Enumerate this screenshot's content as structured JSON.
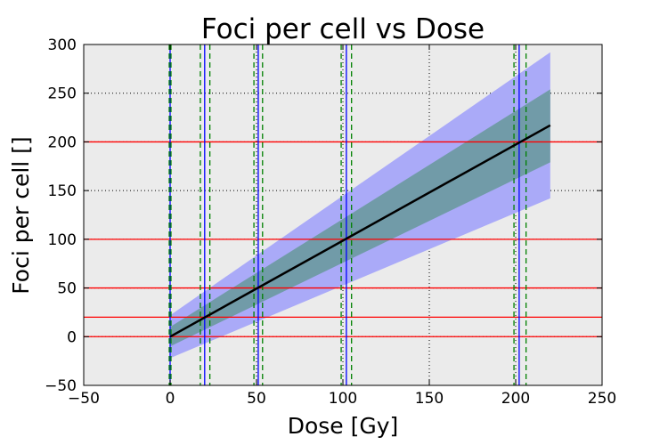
{
  "chart_data": {
    "type": "line",
    "title": "Foci per cell vs Dose",
    "xlabel": "Dose [Gy]",
    "ylabel": "Foci per cell []",
    "xlim": [
      -50,
      250
    ],
    "ylim": [
      -50,
      300
    ],
    "xticks": [
      "−50",
      "0",
      "50",
      "100",
      "150",
      "200",
      "250"
    ],
    "yticks": [
      "−50",
      "0",
      "50",
      "100",
      "150",
      "200",
      "250",
      "300"
    ],
    "grid": true,
    "background_color": "#ebebeb",
    "series": [
      {
        "role": "fit",
        "color": "#000000",
        "x": [
          0,
          220
        ],
        "y": [
          0,
          217
        ]
      }
    ],
    "bands": [
      {
        "role": "outer",
        "color": "#aaaaf8",
        "x": [
          0,
          220
        ],
        "lower": [
          -22,
          142
        ],
        "upper": [
          22,
          292
        ]
      },
      {
        "role": "inner",
        "color": "#719ba8",
        "x": [
          0,
          220
        ],
        "lower": [
          -10,
          179
        ],
        "upper": [
          10,
          254
        ]
      }
    ],
    "hlines": {
      "color": "#ff0000",
      "y": [
        0,
        20,
        50,
        100,
        200
      ]
    },
    "vlines_center": {
      "color": "#0000ff",
      "x": [
        0,
        20,
        51,
        102,
        202
      ]
    },
    "vlines_bounds": {
      "color": "#008000",
      "style": "dashed",
      "x": [
        -0.5,
        0.5,
        17.5,
        23,
        48.5,
        53.5,
        99,
        105,
        199,
        206
      ]
    }
  }
}
